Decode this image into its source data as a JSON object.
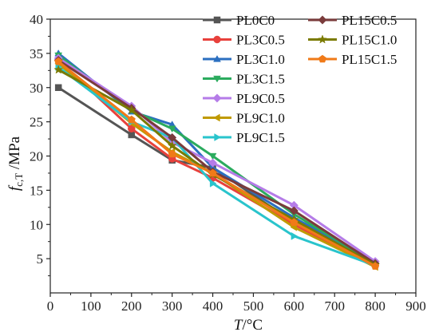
{
  "chart_data": {
    "type": "line",
    "xlabel": "T/°C",
    "xlabel_italic": "T",
    "xlabel_unit": "/°C",
    "ylabel_main": "f",
    "ylabel_sub": "c,T",
    "ylabel_unit": " /MPa",
    "xlim": [
      0,
      900
    ],
    "ylim": [
      0,
      40
    ],
    "xticks": [
      0,
      100,
      200,
      300,
      400,
      500,
      600,
      700,
      800,
      900
    ],
    "yticks": [
      5,
      10,
      15,
      20,
      25,
      30,
      35,
      40
    ],
    "grid": false,
    "legend_position": "top-right",
    "x": [
      20,
      200,
      300,
      400,
      600,
      800
    ],
    "series": [
      {
        "name": "PL0C0",
        "color": "#555555",
        "marker": "square",
        "values": [
          30.0,
          23.1,
          19.4,
          18.3,
          10.3,
          4.2
        ]
      },
      {
        "name": "PL3C0.5",
        "color": "#e8413c",
        "marker": "circle",
        "values": [
          34.0,
          24.0,
          19.6,
          16.8,
          10.0,
          4.0
        ]
      },
      {
        "name": "PL3C1.0",
        "color": "#2b6fc0",
        "marker": "triangle-up",
        "values": [
          35.0,
          26.5,
          24.6,
          18.3,
          11.0,
          4.4
        ]
      },
      {
        "name": "PL3C1.5",
        "color": "#2bab5e",
        "marker": "triangle-down",
        "values": [
          34.7,
          26.7,
          24.0,
          20.0,
          11.5,
          4.3
        ]
      },
      {
        "name": "PL9C0.5",
        "color": "#b57ce8",
        "marker": "diamond",
        "values": [
          34.3,
          27.3,
          22.0,
          19.0,
          12.8,
          4.6
        ]
      },
      {
        "name": "PL9C1.0",
        "color": "#c09a00",
        "marker": "triangle-left",
        "values": [
          33.5,
          24.8,
          20.6,
          17.5,
          9.6,
          3.8
        ]
      },
      {
        "name": "PL9C1.5",
        "color": "#29c4cc",
        "marker": "triangle-right",
        "values": [
          33.0,
          25.0,
          22.7,
          16.0,
          8.3,
          4.0
        ]
      },
      {
        "name": "PL15C0.5",
        "color": "#7a3b3b",
        "marker": "diamond",
        "values": [
          34.0,
          27.0,
          22.7,
          17.7,
          12.0,
          4.3
        ]
      },
      {
        "name": "PL15C1.0",
        "color": "#7a7a00",
        "marker": "star",
        "values": [
          32.6,
          26.7,
          21.5,
          17.3,
          10.7,
          4.1
        ]
      },
      {
        "name": "PL15C1.5",
        "color": "#f07a18",
        "marker": "pentagon",
        "values": [
          33.8,
          25.3,
          20.3,
          17.5,
          10.3,
          3.9
        ]
      }
    ]
  }
}
